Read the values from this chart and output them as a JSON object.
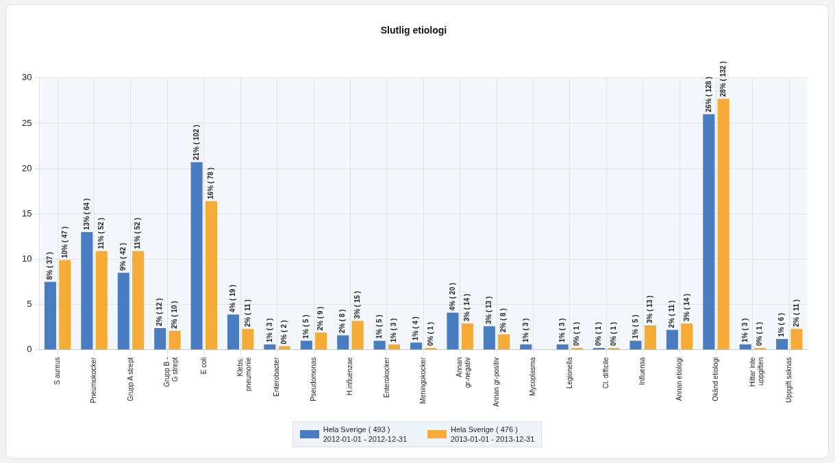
{
  "chart_data": {
    "type": "bar",
    "title": "Slutlig etiologi",
    "categories": [
      "S aureus",
      "Pneumokocker",
      "Grupp A strept",
      "Grupp B -\nG strept",
      "E coli",
      "Klebs.\npneumonie",
      "Enterobacter",
      "Pseudomonas",
      "H.influenzae",
      "Enterokocker",
      "Meningokocker",
      "Annan\ngr-negativ",
      "Annan gr-positiv",
      "Mycoplasma",
      "Legionella",
      "Cl. difficile",
      "Influensa",
      "Annan etiologi",
      "Okänd etiologi",
      "Hittar inte\nuppgiften",
      "Uppgift saknas"
    ],
    "series": [
      {
        "name": "Hela Sverige  ( 493 )\n2012-01-01 - 2012-12-31",
        "color": "#4a7cc2",
        "values": [
          7.5,
          13.0,
          8.5,
          2.4,
          20.7,
          3.9,
          0.6,
          1.0,
          1.6,
          1.0,
          0.8,
          4.1,
          2.6,
          0.6,
          0.6,
          0.2,
          1.0,
          2.2,
          26.0,
          0.6,
          1.2
        ],
        "value_labels": [
          "8% ( 37 )",
          "13% ( 64 )",
          "9% ( 42 )",
          "2% ( 12 )",
          "21% ( 102 )",
          "4% ( 19 )",
          "1% ( 3 )",
          "1% ( 5 )",
          "2% ( 8 )",
          "1% ( 5 )",
          "1% ( 4 )",
          "4% ( 20 )",
          "3% ( 13 )",
          "1% ( 3 )",
          "1% ( 3 )",
          "0% ( 1 )",
          "1% ( 5 )",
          "2% ( 11 )",
          "26% ( 128 )",
          "1% ( 3 )",
          "1% ( 6 )"
        ]
      },
      {
        "name": "Hela Sverige  ( 476 )\n2013-01-01 - 2013-12-31",
        "color": "#f5ab35",
        "values": [
          9.9,
          10.9,
          10.9,
          2.1,
          16.4,
          2.3,
          0.4,
          1.9,
          3.2,
          0.6,
          0.2,
          2.9,
          1.7,
          null,
          0.2,
          0.2,
          2.7,
          2.9,
          27.7,
          0.2,
          2.3
        ],
        "value_labels": [
          "10% ( 47 )",
          "11% ( 52 )",
          "11% ( 52 )",
          "2% ( 10 )",
          "16% ( 78 )",
          "2% ( 11 )",
          "0% ( 2 )",
          "2% ( 9 )",
          "3% ( 15 )",
          "1% ( 3 )",
          "0% ( 1 )",
          "3% ( 14 )",
          "2% ( 8 )",
          null,
          "0% ( 1 )",
          "0% ( 1 )",
          "3% ( 13 )",
          "3% ( 14 )",
          "28% ( 132 )",
          "0% ( 1 )",
          "2% ( 11 )"
        ]
      }
    ],
    "ylim": [
      0,
      30
    ],
    "yticks": [
      0,
      5,
      10,
      15,
      20,
      25,
      30
    ],
    "grid": true,
    "legend": "bottom"
  }
}
